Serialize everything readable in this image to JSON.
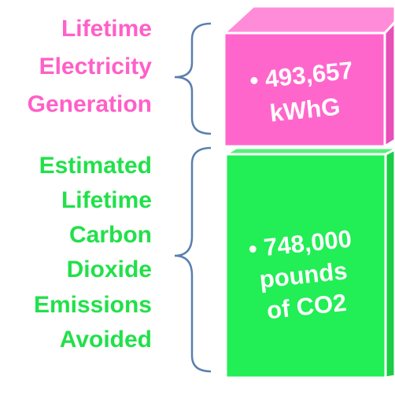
{
  "sections": [
    {
      "label": [
        "Lifetime",
        "Electricity",
        "Generation"
      ],
      "value": [
        "• 493,657",
        "kWhG"
      ]
    },
    {
      "label": [
        "Estimated",
        "Lifetime",
        "Carbon",
        "Dioxide",
        "Emissions",
        "Avoided"
      ],
      "value": [
        "• 748,000",
        "pounds",
        "of CO2"
      ]
    }
  ]
}
